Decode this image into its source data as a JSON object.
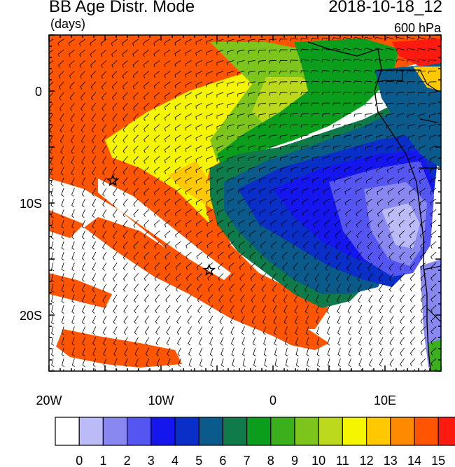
{
  "header": {
    "title": "BB Age Distr. Mode",
    "units": "(days)",
    "datetime": "2018-10-18_12",
    "level": "600 hPa"
  },
  "map": {
    "lon_range": [
      -20,
      15
    ],
    "lat_range": [
      -25,
      5
    ],
    "x_ticks": [
      {
        "value": -20,
        "label": "20W"
      },
      {
        "value": -10,
        "label": "10W"
      },
      {
        "value": 0,
        "label": "0"
      },
      {
        "value": 10,
        "label": "10E"
      }
    ],
    "y_ticks": [
      {
        "value": 0,
        "label": "0"
      },
      {
        "value": -10,
        "label": "10S"
      },
      {
        "value": -20,
        "label": "20S"
      }
    ],
    "markers": [
      {
        "name": "star",
        "lon": -14.3,
        "lat": -8.0
      },
      {
        "name": "star",
        "lon": -5.7,
        "lat": -16.0
      }
    ]
  },
  "colorbar": {
    "labels": [
      "0",
      "1",
      "2",
      "3",
      "4",
      "5",
      "6",
      "7",
      "8",
      "9",
      "10",
      "11",
      "12",
      "13",
      "14",
      "15"
    ],
    "colors": [
      "#ffffff",
      "#bbbbf8",
      "#8888f0",
      "#5555f2",
      "#1515ee",
      "#0a2ec8",
      "#0a5a8c",
      "#0f7a4a",
      "#0a9e1c",
      "#3cb01c",
      "#7dc41c",
      "#bcd81c",
      "#f5f500",
      "#ffc800",
      "#ff8a00",
      "#ff5500",
      "#ff1a10"
    ]
  },
  "chart_data": {
    "type": "heatmap",
    "variable": "BB Age Distr. Mode",
    "units": "days",
    "level": "600 hPa",
    "valid_time": "2018-10-18_12",
    "xlim": [
      -20,
      15
    ],
    "ylim": [
      -25,
      5
    ],
    "color_levels": [
      0,
      1,
      2,
      3,
      4,
      5,
      6,
      7,
      8,
      9,
      10,
      11,
      12,
      13,
      14,
      15
    ]
  }
}
